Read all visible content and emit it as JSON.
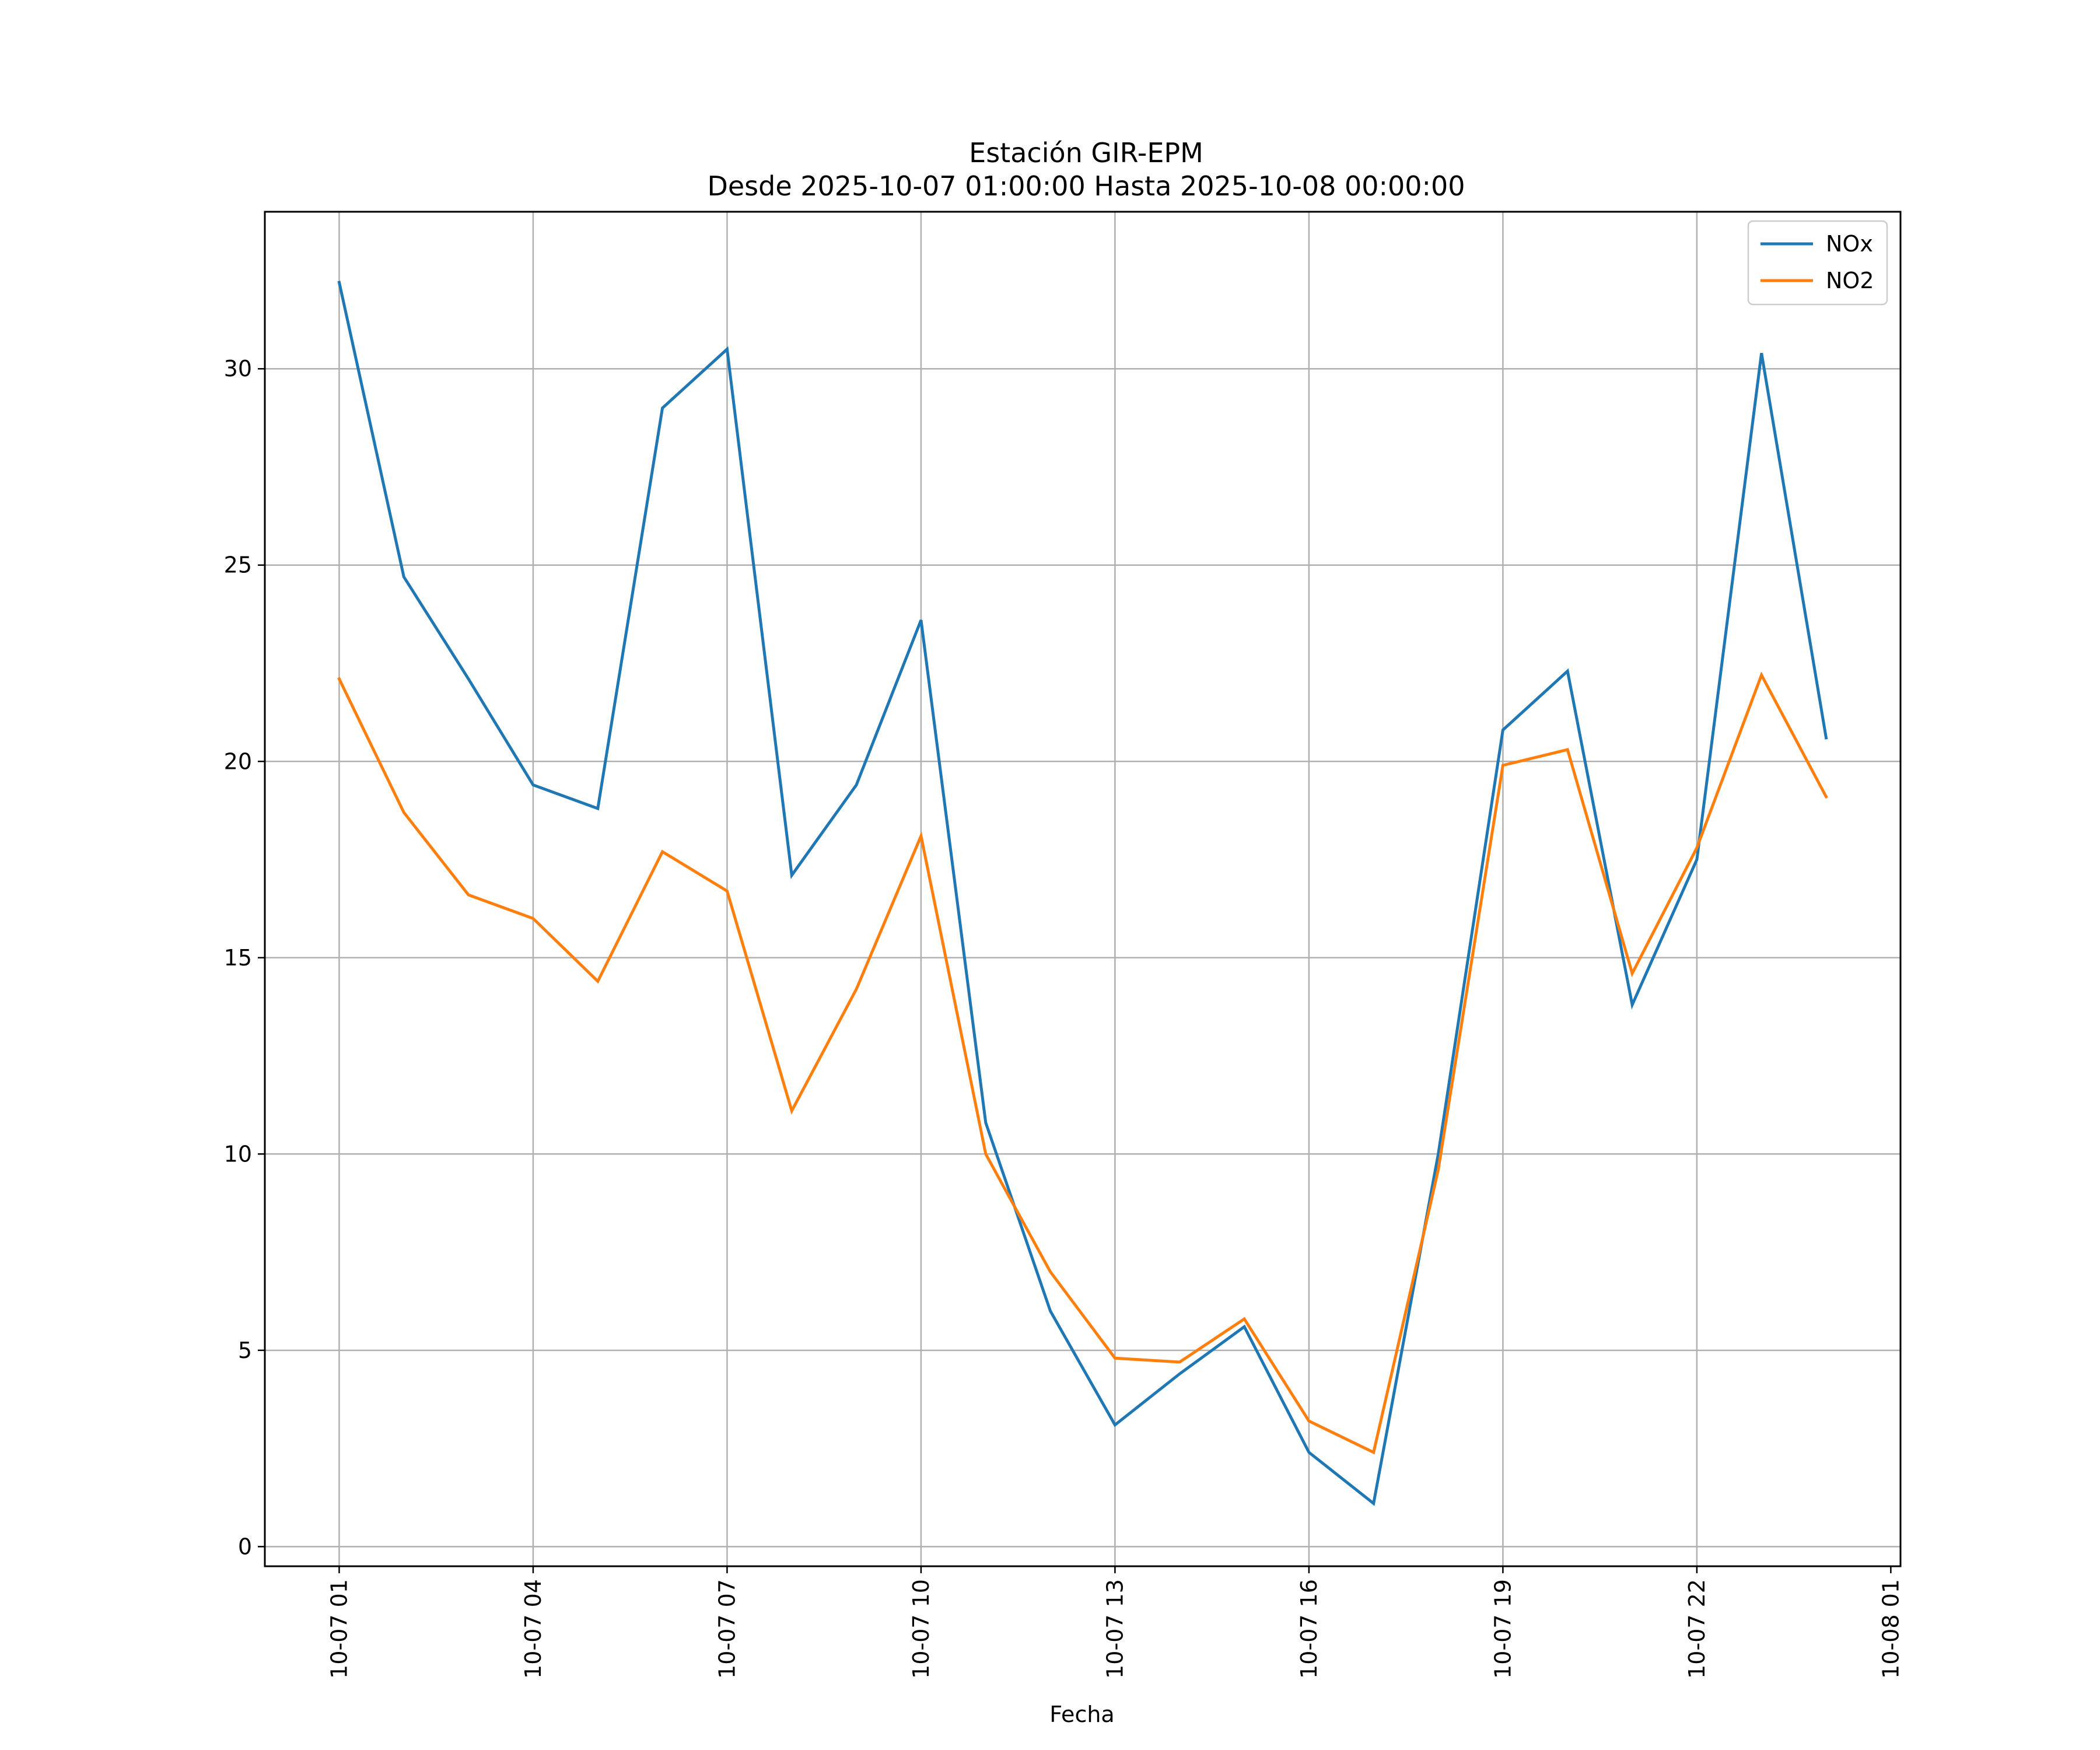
{
  "chart_data": {
    "type": "line",
    "title": "Estación GIR-EPM",
    "subtitle": "Desde 2025-10-07 01:00:00 Hasta 2025-10-08 00:00:00",
    "xlabel": "Fecha",
    "ylabel": "",
    "x": [
      "10-07 01",
      "10-07 02",
      "10-07 03",
      "10-07 04",
      "10-07 05",
      "10-07 06",
      "10-07 07",
      "10-07 08",
      "10-07 09",
      "10-07 10",
      "10-07 11",
      "10-07 12",
      "10-07 13",
      "10-07 14",
      "10-07 15",
      "10-07 16",
      "10-07 17",
      "10-07 18",
      "10-07 19",
      "10-07 20",
      "10-07 21",
      "10-07 22",
      "10-07 23",
      "10-08 00"
    ],
    "x_hours": [
      1,
      2,
      3,
      4,
      5,
      6,
      7,
      8,
      9,
      10,
      11,
      12,
      13,
      14,
      15,
      16,
      17,
      18,
      19,
      20,
      21,
      22,
      23,
      24
    ],
    "xlim_hours": [
      -0.15,
      25.15
    ],
    "ylim": [
      -0.5,
      34
    ],
    "x_ticks": [
      {
        "hour": 1,
        "label": "10-07 01"
      },
      {
        "hour": 4,
        "label": "10-07 04"
      },
      {
        "hour": 7,
        "label": "10-07 07"
      },
      {
        "hour": 10,
        "label": "10-07 10"
      },
      {
        "hour": 13,
        "label": "10-07 13"
      },
      {
        "hour": 16,
        "label": "10-07 16"
      },
      {
        "hour": 19,
        "label": "10-07 19"
      },
      {
        "hour": 22,
        "label": "10-07 22"
      },
      {
        "hour": 25,
        "label": "10-08 01"
      }
    ],
    "y_ticks": [
      0,
      5,
      10,
      15,
      20,
      25,
      30
    ],
    "grid": true,
    "legend": "top-right",
    "series": [
      {
        "name": "NOx",
        "color": "#1f77b4",
        "values": [
          32.2,
          24.7,
          22.1,
          19.4,
          18.8,
          29.0,
          30.5,
          17.1,
          19.4,
          23.6,
          10.8,
          6.0,
          3.1,
          4.4,
          5.6,
          2.4,
          1.1,
          10.0,
          20.8,
          22.3,
          13.8,
          17.5,
          30.4,
          20.6
        ]
      },
      {
        "name": "NO2",
        "color": "#ff7f0e",
        "values": [
          22.1,
          18.7,
          16.6,
          16.0,
          14.4,
          17.7,
          16.7,
          11.1,
          14.2,
          18.1,
          10.0,
          7.0,
          4.8,
          4.7,
          5.8,
          3.2,
          2.4,
          9.6,
          19.9,
          20.3,
          14.6,
          17.8,
          22.2,
          19.1
        ]
      }
    ]
  }
}
